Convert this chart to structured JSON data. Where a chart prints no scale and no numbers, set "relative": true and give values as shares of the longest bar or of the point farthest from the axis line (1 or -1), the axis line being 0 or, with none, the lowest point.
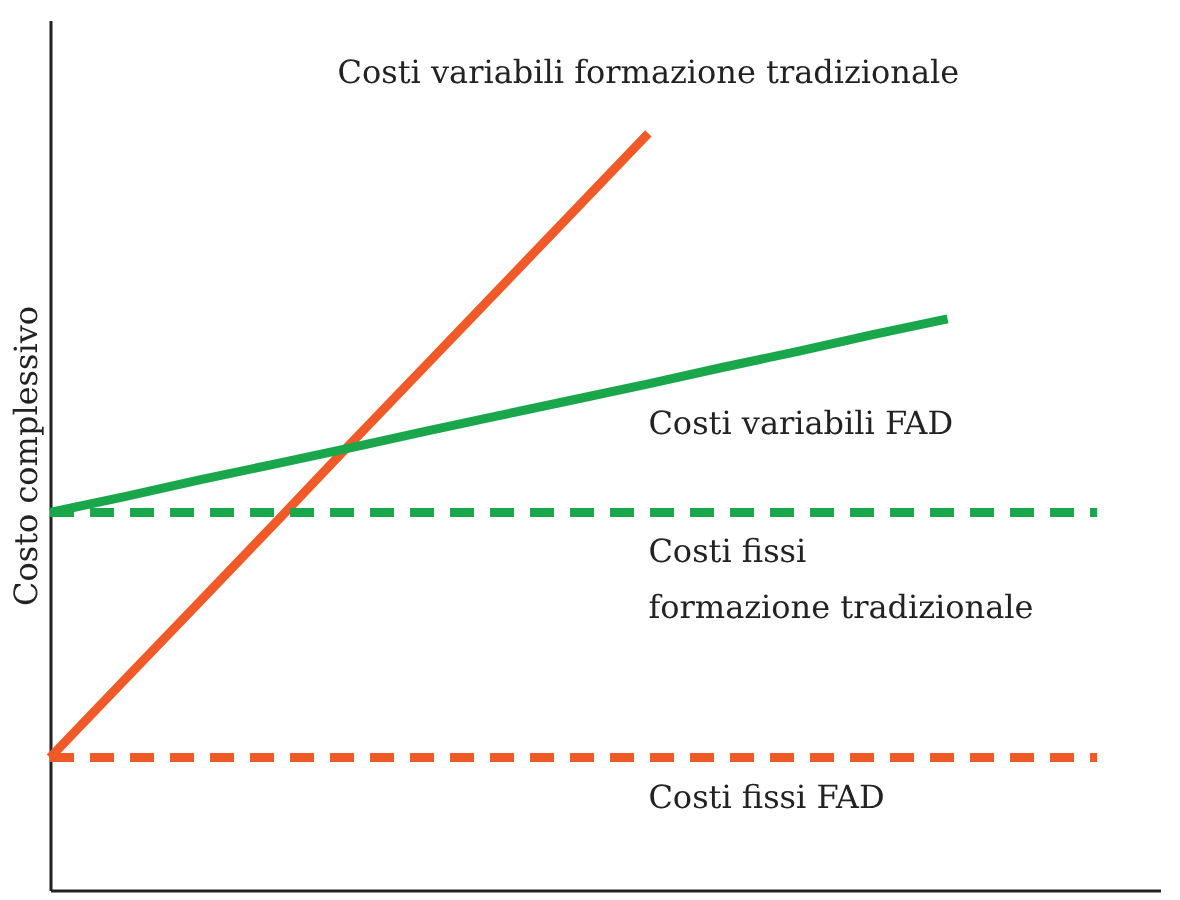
{
  "chart_data": {
    "type": "line",
    "relative": true,
    "ylabel": "Costo complessivo",
    "tick_labels": false,
    "grid": false,
    "categories": [
      null,
      null,
      null,
      null,
      null,
      null,
      null,
      null,
      null,
      null,
      null,
      null,
      null,
      null,
      null
    ],
    "series": [
      {
        "name": "Costi variabili formazione tradizionale",
        "color": "#f05a28",
        "line_style": "solid",
        "values": [
          0.175,
          0.278,
          0.381,
          0.484,
          0.588,
          0.691,
          0.794,
          0.897,
          1.0,
          null,
          null,
          null,
          null,
          null,
          null
        ]
      },
      {
        "name": "Costi variabili FAD",
        "color": "#1aa64a",
        "line_style": "solid",
        "values": [
          0.499,
          0.52,
          0.542,
          0.563,
          0.584,
          0.606,
          0.627,
          0.648,
          0.669,
          0.691,
          0.712,
          0.734,
          0.755,
          null,
          null
        ]
      },
      {
        "name": "Costi fissi\nformazione tradizionale",
        "color": "#1aa64a",
        "line_style": "dashed",
        "values": [
          0.499,
          0.499,
          0.499,
          0.499,
          0.499,
          0.499,
          0.499,
          0.499,
          0.499,
          0.499,
          0.499,
          0.499,
          0.499,
          0.499,
          0.499
        ]
      },
      {
        "name": "Costi fissi FAD",
        "color": "#f05a28",
        "line_style": "dashed",
        "values": [
          0.175,
          0.175,
          0.175,
          0.175,
          0.175,
          0.175,
          0.175,
          0.175,
          0.175,
          0.175,
          0.175,
          0.175,
          0.175,
          0.175,
          0.175
        ]
      }
    ]
  }
}
